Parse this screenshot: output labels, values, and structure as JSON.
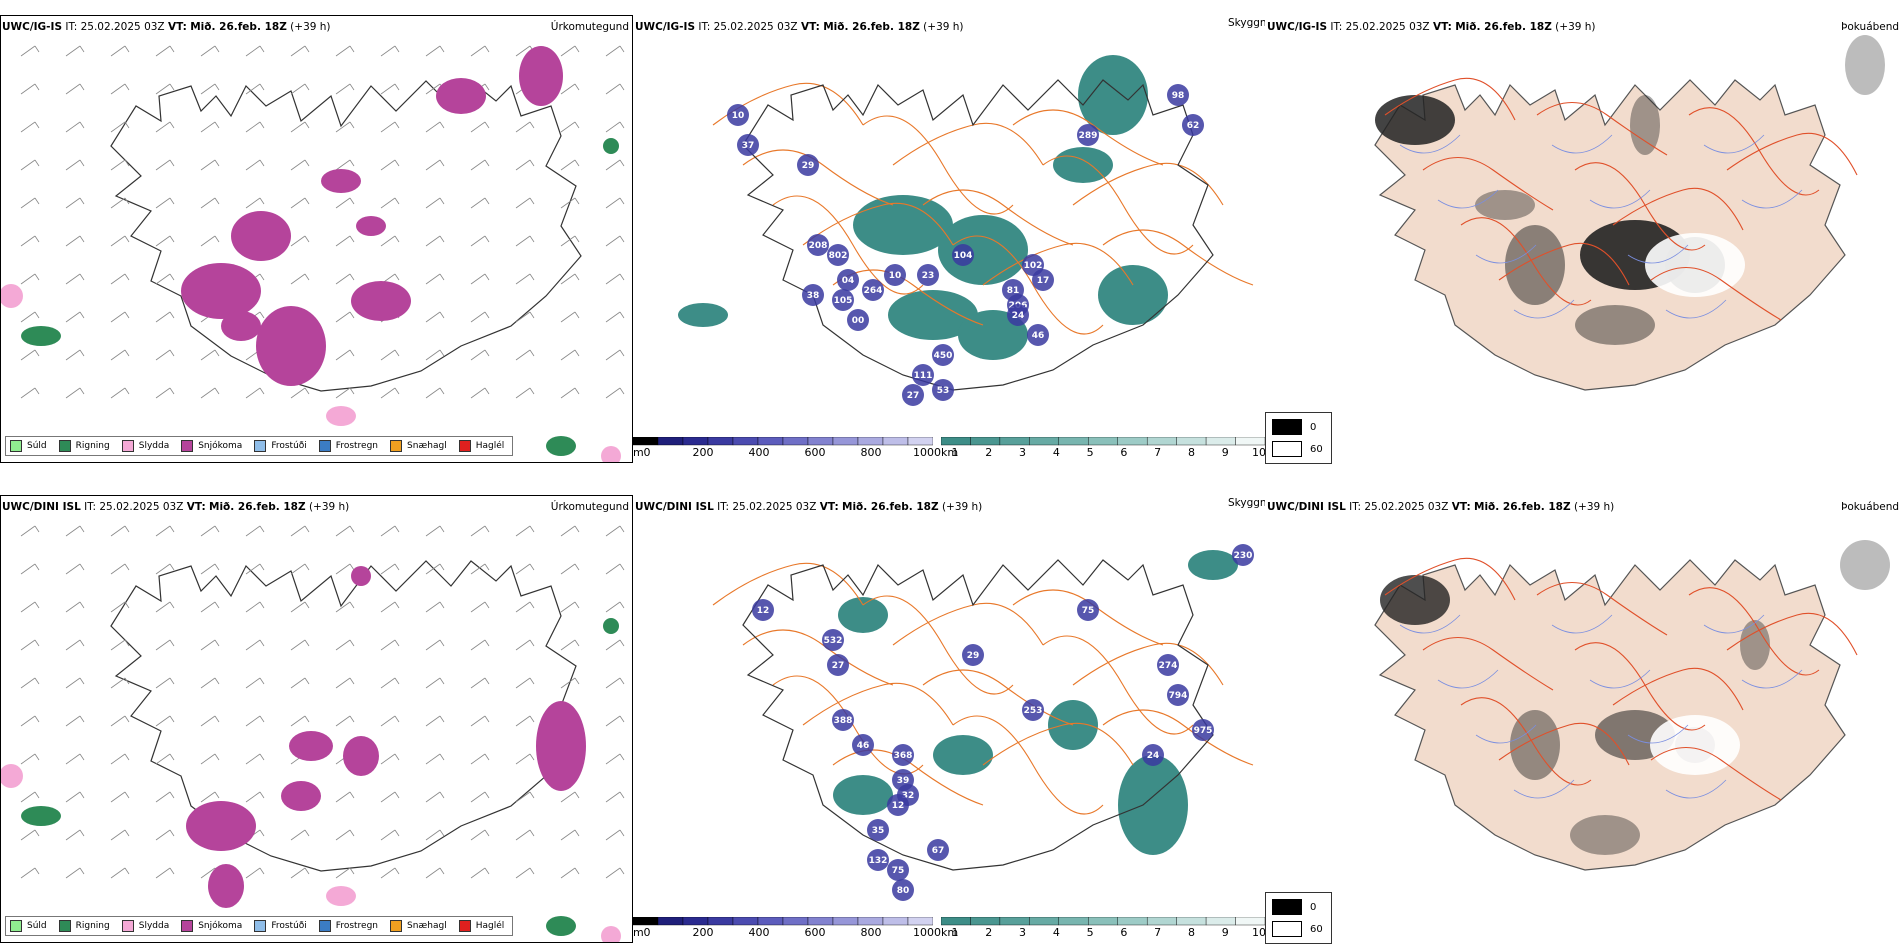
{
  "colors": {
    "sudl": "#90ee90",
    "rigning": "#2e8b57",
    "slydda": "#f4a9d6",
    "snjokoma": "#b5449b",
    "frostudi": "#8fbde8",
    "frostregn": "#3b7cc4",
    "snaehagl": "#f0a020",
    "haglel": "#e0201e",
    "cloud": "#3d8d87",
    "vis": "#3a3aa0",
    "road": "#e8782a",
    "fog_land": "#f2dccd"
  },
  "rows": [
    {
      "precip": {
        "model": "UWC/IG-IS",
        "it_label": "IT:",
        "it": "25.02.2025 03Z",
        "vt_label": "VT:",
        "vt": "Mið. 26.feb. 18Z",
        "lead": "(+39 h)",
        "title": "Úrkomutegund"
      },
      "cloud": {
        "model": "UWC/IG-IS",
        "it_label": "IT:",
        "it": "25.02.2025 03Z",
        "vt_label": "VT:",
        "vt": "Mið. 26.feb. 18Z",
        "lead": "(+39 h)",
        "title": "Skyggni"
      },
      "fog": {
        "model": "UWC/IG-IS",
        "it_label": "IT:",
        "it": "25.02.2025 03Z",
        "vt_label": "VT:",
        "vt": "Mið. 26.feb. 18Z",
        "lead": "(+39 h)",
        "title": "Þokuábendi"
      },
      "labels": [
        "98",
        "62",
        "289",
        "10",
        "37",
        "29",
        "208",
        "802",
        "04",
        "264",
        "10",
        "23",
        "104",
        "102",
        "17",
        "81",
        "206",
        "24",
        "46",
        "38",
        "105",
        "00",
        "450",
        "111",
        "53",
        "27"
      ]
    },
    {
      "precip": {
        "model": "UWC/DINI ISL",
        "it_label": "IT:",
        "it": "25.02.2025 03Z",
        "vt_label": "VT:",
        "vt": "Mið. 26.feb. 18Z",
        "lead": "(+39 h)",
        "title": "Úrkomutegund"
      },
      "cloud": {
        "model": "UWC/DINI ISL",
        "it_label": "IT:",
        "it": "25.02.2025 03Z",
        "vt_label": "VT:",
        "vt": "Mið. 26.feb. 18Z",
        "lead": "(+39 h)",
        "title": "Skyggni"
      },
      "fog": {
        "model": "UWC/DINI ISL",
        "it_label": "IT:",
        "it": "25.02.2025 03Z",
        "vt_label": "VT:",
        "vt": "Mið. 26.feb. 18Z",
        "lead": "(+39 h)",
        "title": "Þokuábendi"
      },
      "labels": [
        "230",
        "75",
        "532",
        "27",
        "12",
        "29",
        "253",
        "388",
        "46",
        "368",
        "39",
        "32",
        "12",
        "35",
        "132",
        "75",
        "80",
        "67",
        "274",
        "794",
        "975",
        "24"
      ]
    }
  ],
  "legend": [
    "Súld",
    "Rigning",
    "Slydda",
    "Snjókoma",
    "Frostúði",
    "Frostregn",
    "Snæhagl",
    "Haglél"
  ],
  "vis_bar": {
    "unit": "m",
    "ticks": [
      "0",
      "200",
      "400",
      "600",
      "800",
      "1000"
    ]
  },
  "cloud_bar": {
    "unit": "km",
    "ticks": [
      "1",
      "2",
      "3",
      "4",
      "5",
      "6",
      "7",
      "8",
      "9",
      "10"
    ]
  },
  "fog_key": {
    "values": [
      "0",
      "60"
    ]
  }
}
